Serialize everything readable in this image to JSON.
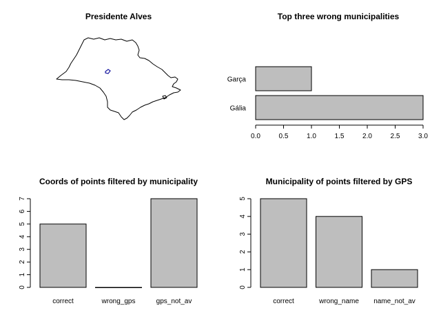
{
  "chart_data": [
    {
      "type": "map",
      "title": "Presidente Alves"
    },
    {
      "type": "bar",
      "orientation": "horizontal",
      "title": "Top three wrong municipalities",
      "categories": [
        "Gália",
        "Garça"
      ],
      "values": [
        3,
        1
      ],
      "xlim": [
        0,
        3
      ],
      "xticks": [
        "0.0",
        "0.5",
        "1.0",
        "1.5",
        "2.0",
        "2.5",
        "3.0"
      ],
      "xtick_values": [
        0,
        0.5,
        1,
        1.5,
        2,
        2.5,
        3
      ],
      "grid": false
    },
    {
      "type": "bar",
      "title": "Coords of points filtered by municipality",
      "categories": [
        "correct",
        "wrong_gps",
        "gps_not_av"
      ],
      "values": [
        5,
        0,
        7
      ],
      "ylim": [
        0,
        7
      ],
      "yticks": [
        "0",
        "1",
        "2",
        "3",
        "4",
        "5",
        "6",
        "7"
      ],
      "ytick_values": [
        0,
        1,
        2,
        3,
        4,
        5,
        6,
        7
      ],
      "grid": false
    },
    {
      "type": "bar",
      "title": "Municipality of points filtered by GPS",
      "categories": [
        "correct",
        "wrong_name",
        "name_not_av"
      ],
      "values": [
        5,
        4,
        1
      ],
      "ylim": [
        0,
        5
      ],
      "yticks": [
        "0",
        "1",
        "2",
        "3",
        "4",
        "5"
      ],
      "ytick_values": [
        0,
        1,
        2,
        3,
        4,
        5
      ],
      "grid": false
    }
  ]
}
